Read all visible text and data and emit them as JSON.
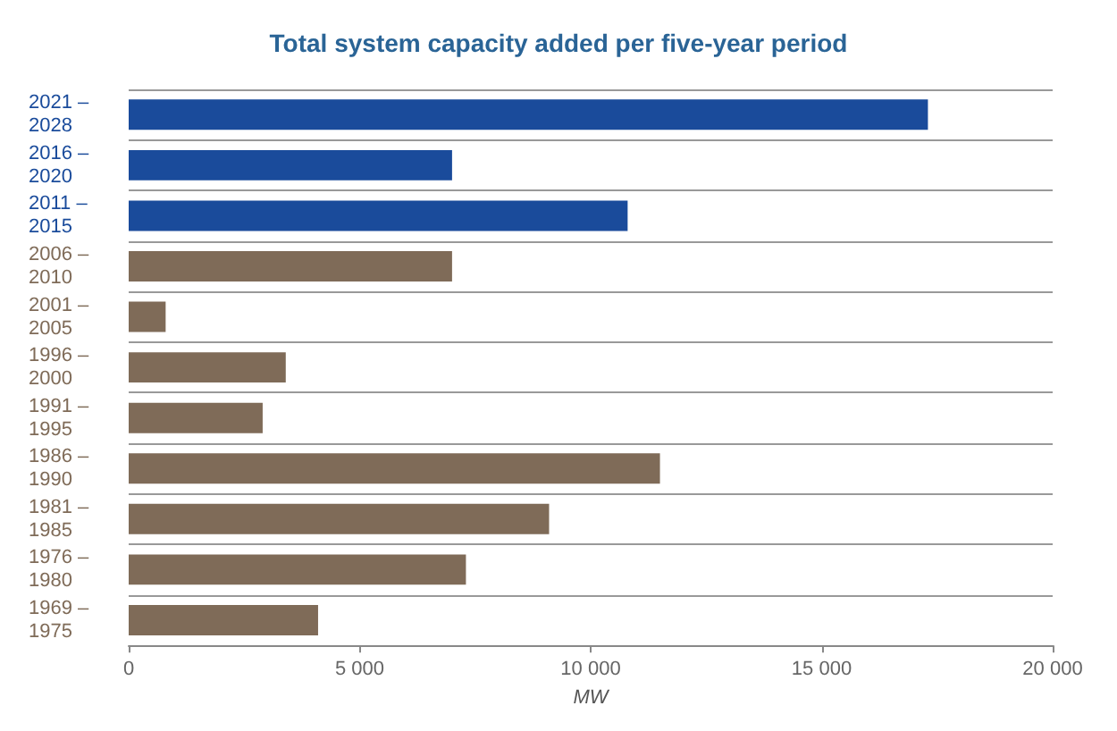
{
  "chart_data": {
    "type": "bar",
    "orientation": "horizontal",
    "title": "Total system capacity added per five-year period",
    "categories": [
      "2021 –\n2028",
      "2016 –\n2020",
      "2011 –\n2015",
      "2006 –\n2010",
      "2001 –\n2005",
      "1996 –\n2000",
      "1991 –\n1995",
      "1986 –\n1990",
      "1981 –\n1985",
      "1976 –\n1980",
      "1969 –\n1975"
    ],
    "values": [
      17300,
      7000,
      10800,
      7000,
      800,
      3400,
      2900,
      11500,
      9100,
      7300,
      4100
    ],
    "colors": [
      "#1a4b9b",
      "#1a4b9b",
      "#1a4b9b",
      "#7f6b58",
      "#7f6b58",
      "#7f6b58",
      "#7f6b58",
      "#7f6b58",
      "#7f6b58",
      "#7f6b58",
      "#7f6b58"
    ],
    "xlabel": "MW",
    "xlim": [
      0,
      20000
    ],
    "xticks": [
      {
        "value": 0,
        "label": "0"
      },
      {
        "value": 5000,
        "label": "5 000"
      },
      {
        "value": 10000,
        "label": "10 000"
      },
      {
        "value": 15000,
        "label": "15 000"
      },
      {
        "value": 20000,
        "label": "20 000"
      }
    ],
    "grid": "y"
  }
}
